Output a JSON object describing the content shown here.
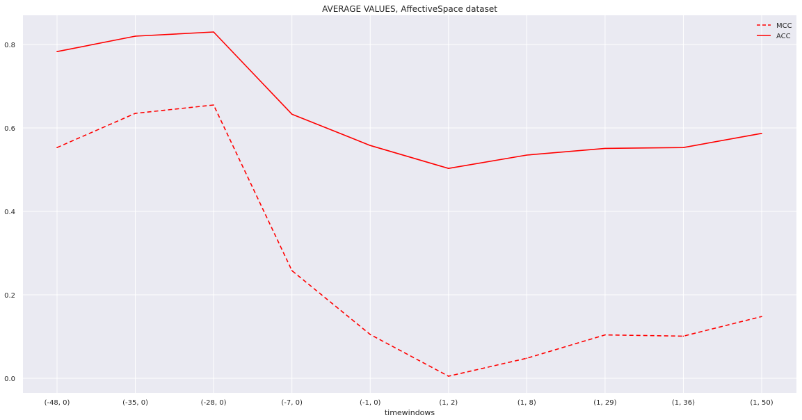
{
  "chart_data": {
    "type": "line",
    "title": "AVERAGE VALUES, AffectiveSpace dataset",
    "xlabel": "timewindows",
    "ylabel": "",
    "categories": [
      "(-48, 0)",
      "(-35, 0)",
      "(-28, 0)",
      "(-7, 0)",
      "(-1, 0)",
      "(1, 2)",
      "(1, 8)",
      "(1, 29)",
      "(1, 36)",
      "(1, 50)"
    ],
    "series": [
      {
        "name": "MCC",
        "style": "dashed",
        "color": "#ff0000",
        "values": [
          0.553,
          0.635,
          0.655,
          0.258,
          0.105,
          0.005,
          0.048,
          0.104,
          0.101,
          0.148
        ]
      },
      {
        "name": "ACC",
        "style": "solid",
        "color": "#ff0000",
        "values": [
          0.783,
          0.82,
          0.83,
          0.633,
          0.558,
          0.503,
          0.535,
          0.551,
          0.553,
          0.587
        ]
      }
    ],
    "yticks": [
      0.0,
      0.2,
      0.4,
      0.6,
      0.8
    ],
    "ytick_labels": [
      "0.0",
      "0.2",
      "0.4",
      "0.6",
      "0.8"
    ],
    "ylim": [
      -0.035,
      0.87
    ],
    "grid": true,
    "legend_position": "top-right",
    "background_color": "#eaeaf2",
    "grid_color": "#ffffff",
    "text_color": "#262626"
  }
}
